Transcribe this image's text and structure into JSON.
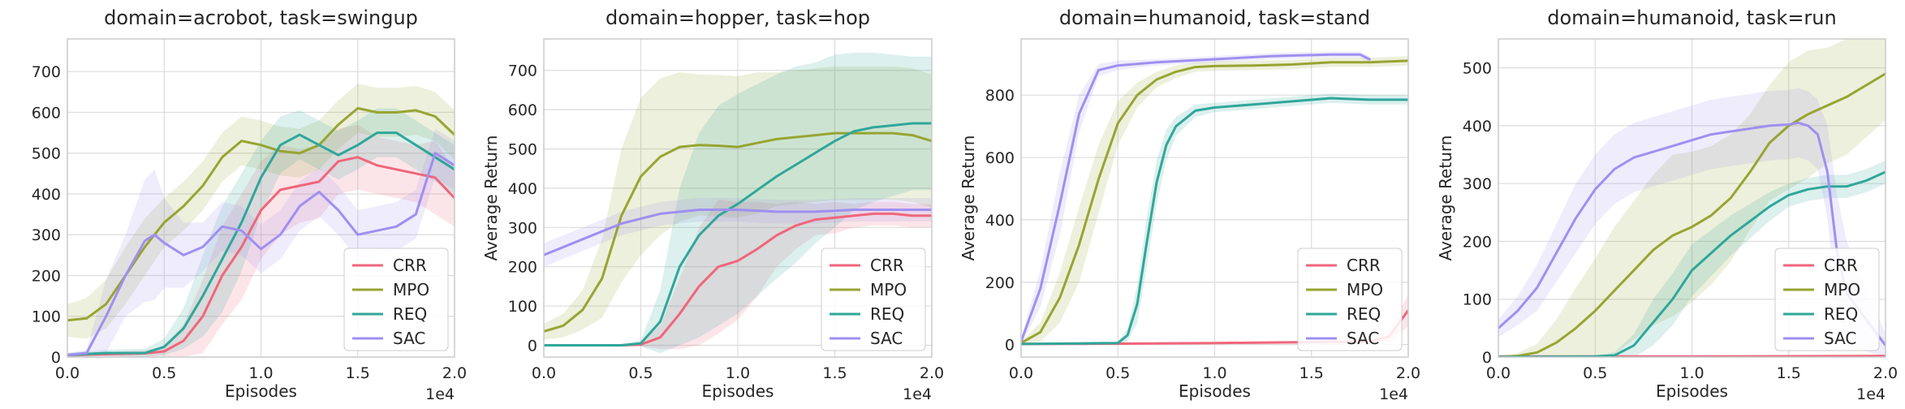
{
  "colors": {
    "CRR": "#f0667c",
    "MPO": "#97a532",
    "REQ": "#2fa79a",
    "SAC": "#9f8ff0",
    "grid": "#dcdcdc",
    "axes": "#cccccc"
  },
  "chart_data": [
    {
      "type": "line",
      "title": "domain=acrobot, task=swingup",
      "xlabel": "Episodes",
      "ylabel": "",
      "x_multiplier_label": "1e4",
      "xlim": [
        0,
        2
      ],
      "ylim": [
        0,
        780
      ],
      "xticks": [
        "0.0",
        "0.5",
        "1.0",
        "1.5",
        "2.0"
      ],
      "yticks": [
        0,
        100,
        200,
        300,
        400,
        500,
        600,
        700
      ],
      "legend": "lower-right",
      "series": [
        {
          "name": "CRR",
          "x": [
            0,
            0.2,
            0.4,
            0.5,
            0.6,
            0.7,
            0.8,
            0.9,
            1.0,
            1.1,
            1.2,
            1.3,
            1.4,
            1.5,
            1.6,
            1.7,
            1.8,
            1.9,
            2.0
          ],
          "y": [
            5,
            7,
            9,
            14,
            40,
            100,
            200,
            270,
            360,
            410,
            420,
            430,
            480,
            490,
            470,
            460,
            450,
            440,
            390
          ],
          "band": [
            5,
            5,
            8,
            12,
            40,
            90,
            120,
            130,
            120,
            110,
            90,
            90,
            80,
            80,
            70,
            70,
            70,
            90,
            70
          ]
        },
        {
          "name": "MPO",
          "x": [
            0,
            0.1,
            0.2,
            0.3,
            0.4,
            0.5,
            0.6,
            0.7,
            0.8,
            0.9,
            1.0,
            1.1,
            1.2,
            1.3,
            1.4,
            1.5,
            1.6,
            1.7,
            1.8,
            1.9,
            2.0
          ],
          "y": [
            90,
            95,
            130,
            200,
            270,
            330,
            370,
            420,
            490,
            530,
            520,
            505,
            500,
            520,
            570,
            610,
            600,
            600,
            605,
            590,
            545
          ],
          "band": [
            40,
            50,
            60,
            70,
            70,
            60,
            60,
            60,
            60,
            60,
            60,
            60,
            60,
            60,
            60,
            60,
            60,
            60,
            60,
            60,
            60
          ]
        },
        {
          "name": "REQ",
          "x": [
            0,
            0.2,
            0.4,
            0.5,
            0.6,
            0.7,
            0.8,
            0.9,
            1.0,
            1.1,
            1.2,
            1.3,
            1.4,
            1.5,
            1.6,
            1.7,
            1.8,
            1.9,
            2.0
          ],
          "y": [
            5,
            10,
            10,
            25,
            70,
            150,
            240,
            330,
            440,
            520,
            545,
            520,
            495,
            520,
            550,
            550,
            520,
            490,
            460
          ],
          "band": [
            5,
            8,
            10,
            20,
            50,
            100,
            130,
            120,
            90,
            70,
            60,
            60,
            60,
            60,
            60,
            60,
            60,
            60,
            60
          ]
        },
        {
          "name": "SAC",
          "x": [
            0,
            0.1,
            0.2,
            0.3,
            0.4,
            0.45,
            0.5,
            0.6,
            0.7,
            0.8,
            0.9,
            1.0,
            1.1,
            1.2,
            1.3,
            1.4,
            1.5,
            1.6,
            1.7,
            1.8,
            1.9,
            2.0
          ],
          "y": [
            5,
            10,
            100,
            200,
            285,
            300,
            280,
            250,
            270,
            320,
            310,
            265,
            300,
            370,
            405,
            360,
            300,
            310,
            320,
            350,
            500,
            470
          ],
          "band": [
            5,
            8,
            90,
            100,
            150,
            160,
            110,
            80,
            60,
            60,
            60,
            60,
            60,
            60,
            60,
            60,
            60,
            60,
            60,
            60,
            60,
            60
          ]
        }
      ]
    },
    {
      "type": "line",
      "title": "domain=hopper, task=hop",
      "xlabel": "Episodes",
      "ylabel": "Average Return",
      "x_multiplier_label": "1e4",
      "xlim": [
        0,
        2
      ],
      "ylim": [
        -30,
        780
      ],
      "xticks": [
        "0.0",
        "0.5",
        "1.0",
        "1.5",
        "2.0"
      ],
      "yticks": [
        0,
        100,
        200,
        300,
        400,
        500,
        600,
        700
      ],
      "legend": "lower-right",
      "series": [
        {
          "name": "CRR",
          "x": [
            0,
            0.2,
            0.4,
            0.5,
            0.6,
            0.7,
            0.8,
            0.9,
            1.0,
            1.1,
            1.2,
            1.3,
            1.4,
            1.5,
            1.6,
            1.7,
            1.8,
            1.9,
            2.0
          ],
          "y": [
            0,
            0,
            0,
            2,
            20,
            80,
            150,
            200,
            215,
            245,
            280,
            305,
            320,
            325,
            330,
            335,
            335,
            330,
            330
          ],
          "band": [
            2,
            2,
            3,
            5,
            30,
            90,
            150,
            170,
            150,
            120,
            80,
            60,
            40,
            40,
            30,
            30,
            30,
            30,
            30
          ]
        },
        {
          "name": "MPO",
          "x": [
            0,
            0.1,
            0.2,
            0.3,
            0.4,
            0.5,
            0.6,
            0.7,
            0.8,
            0.9,
            1.0,
            1.1,
            1.2,
            1.3,
            1.4,
            1.5,
            1.6,
            1.7,
            1.8,
            1.9,
            2.0
          ],
          "y": [
            35,
            50,
            90,
            170,
            330,
            430,
            480,
            505,
            510,
            508,
            505,
            515,
            525,
            530,
            535,
            540,
            540,
            540,
            540,
            535,
            520
          ],
          "band": [
            20,
            30,
            50,
            100,
            170,
            200,
            200,
            190,
            180,
            180,
            180,
            180,
            170,
            170,
            170,
            170,
            170,
            170,
            170,
            170,
            170
          ]
        },
        {
          "name": "REQ",
          "x": [
            0,
            0.2,
            0.4,
            0.5,
            0.6,
            0.7,
            0.8,
            0.9,
            1.0,
            1.1,
            1.2,
            1.3,
            1.4,
            1.5,
            1.6,
            1.7,
            1.8,
            1.9,
            2.0
          ],
          "y": [
            0,
            0,
            0,
            5,
            60,
            200,
            280,
            330,
            360,
            395,
            430,
            460,
            490,
            520,
            545,
            555,
            560,
            565,
            565
          ],
          "band": [
            2,
            2,
            3,
            8,
            80,
            200,
            260,
            280,
            280,
            270,
            260,
            250,
            230,
            220,
            200,
            190,
            180,
            170,
            170
          ]
        },
        {
          "name": "SAC",
          "x": [
            0,
            0.2,
            0.4,
            0.6,
            0.8,
            1.0,
            1.2,
            1.4,
            1.6,
            1.8,
            2.0
          ],
          "y": [
            230,
            270,
            310,
            335,
            345,
            345,
            340,
            340,
            345,
            345,
            345
          ],
          "band": [
            30,
            30,
            30,
            30,
            30,
            30,
            30,
            30,
            30,
            30,
            30
          ]
        }
      ]
    },
    {
      "type": "line",
      "title": "domain=humanoid, task=stand",
      "xlabel": "Episodes",
      "ylabel": "Average Return",
      "x_multiplier_label": "1e4",
      "xlim": [
        0,
        2
      ],
      "ylim": [
        -40,
        980
      ],
      "xticks": [
        "0.0",
        "0.5",
        "1.0",
        "1.5",
        "2.0"
      ],
      "yticks": [
        0,
        200,
        400,
        600,
        800
      ],
      "legend": "lower-right",
      "series": [
        {
          "name": "CRR",
          "x": [
            0,
            0.5,
            1.0,
            1.5,
            1.8,
            1.9,
            2.0
          ],
          "y": [
            2,
            3,
            5,
            8,
            10,
            25,
            110
          ],
          "band": [
            3,
            3,
            3,
            5,
            8,
            20,
            50
          ]
        },
        {
          "name": "MPO",
          "x": [
            0,
            0.1,
            0.2,
            0.3,
            0.4,
            0.5,
            0.6,
            0.7,
            0.8,
            0.9,
            1.0,
            1.2,
            1.4,
            1.6,
            1.8,
            2.0
          ],
          "y": [
            5,
            40,
            150,
            320,
            530,
            710,
            800,
            850,
            875,
            890,
            893,
            895,
            898,
            905,
            905,
            910
          ],
          "band": [
            5,
            30,
            80,
            120,
            110,
            70,
            40,
            25,
            20,
            15,
            15,
            15,
            15,
            15,
            15,
            15
          ]
        },
        {
          "name": "REQ",
          "x": [
            0,
            0.5,
            0.55,
            0.6,
            0.65,
            0.7,
            0.75,
            0.8,
            0.9,
            1.0,
            1.2,
            1.4,
            1.6,
            1.8,
            2.0
          ],
          "y": [
            2,
            5,
            30,
            130,
            330,
            520,
            640,
            700,
            750,
            760,
            770,
            780,
            790,
            785,
            785
          ],
          "band": [
            3,
            5,
            20,
            60,
            80,
            70,
            50,
            30,
            20,
            15,
            15,
            15,
            15,
            15,
            15
          ]
        },
        {
          "name": "SAC",
          "x": [
            0,
            0.1,
            0.2,
            0.3,
            0.4,
            0.5,
            0.7,
            1.0,
            1.3,
            1.6,
            1.75,
            1.8
          ],
          "y": [
            10,
            180,
            450,
            740,
            880,
            895,
            905,
            915,
            925,
            930,
            930,
            915
          ],
          "band": [
            10,
            60,
            100,
            60,
            20,
            15,
            10,
            10,
            10,
            10,
            10,
            10
          ]
        }
      ]
    },
    {
      "type": "line",
      "title": "domain=humanoid, task=run",
      "xlabel": "Episodes",
      "ylabel": "Average Return",
      "x_multiplier_label": "1e4",
      "xlim": [
        0,
        2
      ],
      "ylim": [
        0,
        550
      ],
      "xticks": [
        "0.0",
        "0.5",
        "1.0",
        "1.5",
        "2.0"
      ],
      "yticks": [
        0,
        100,
        200,
        300,
        400,
        500
      ],
      "legend": "lower-right",
      "series": [
        {
          "name": "CRR",
          "x": [
            0,
            1.0,
            2.0
          ],
          "y": [
            1,
            1,
            2
          ],
          "band": [
            1,
            1,
            1
          ]
        },
        {
          "name": "MPO",
          "x": [
            0,
            0.1,
            0.2,
            0.3,
            0.4,
            0.5,
            0.6,
            0.7,
            0.8,
            0.9,
            1.0,
            1.1,
            1.2,
            1.3,
            1.4,
            1.5,
            1.6,
            1.7,
            1.8,
            1.9,
            2.0
          ],
          "y": [
            0,
            2,
            8,
            25,
            50,
            80,
            115,
            150,
            185,
            210,
            225,
            245,
            275,
            320,
            370,
            400,
            420,
            435,
            450,
            470,
            490
          ],
          "band": [
            1,
            5,
            15,
            40,
            70,
            90,
            110,
            120,
            130,
            140,
            130,
            120,
            110,
            100,
            100,
            110,
            110,
            100,
            100,
            90,
            80
          ]
        },
        {
          "name": "REQ",
          "x": [
            0,
            0.5,
            0.6,
            0.7,
            0.8,
            0.9,
            1.0,
            1.1,
            1.2,
            1.3,
            1.4,
            1.5,
            1.6,
            1.7,
            1.8,
            1.9,
            2.0
          ],
          "y": [
            0,
            1,
            3,
            20,
            60,
            100,
            150,
            180,
            210,
            235,
            260,
            280,
            290,
            295,
            295,
            305,
            320
          ],
          "band": [
            1,
            2,
            5,
            20,
            40,
            45,
            45,
            40,
            35,
            30,
            25,
            20,
            20,
            20,
            20,
            20,
            20
          ]
        },
        {
          "name": "SAC",
          "x": [
            0,
            0.1,
            0.2,
            0.3,
            0.4,
            0.5,
            0.6,
            0.7,
            0.8,
            0.9,
            1.0,
            1.1,
            1.2,
            1.3,
            1.4,
            1.5,
            1.55,
            1.6,
            1.65,
            1.7,
            1.75,
            1.8,
            2.0
          ],
          "y": [
            50,
            80,
            120,
            180,
            240,
            290,
            325,
            345,
            355,
            365,
            375,
            385,
            390,
            395,
            400,
            402,
            405,
            400,
            385,
            320,
            180,
            110,
            20
          ],
          "band": [
            15,
            25,
            40,
            50,
            60,
            60,
            60,
            60,
            60,
            60,
            60,
            60,
            60,
            60,
            60,
            60,
            60,
            60,
            60,
            80,
            100,
            90,
            20
          ]
        }
      ]
    }
  ]
}
